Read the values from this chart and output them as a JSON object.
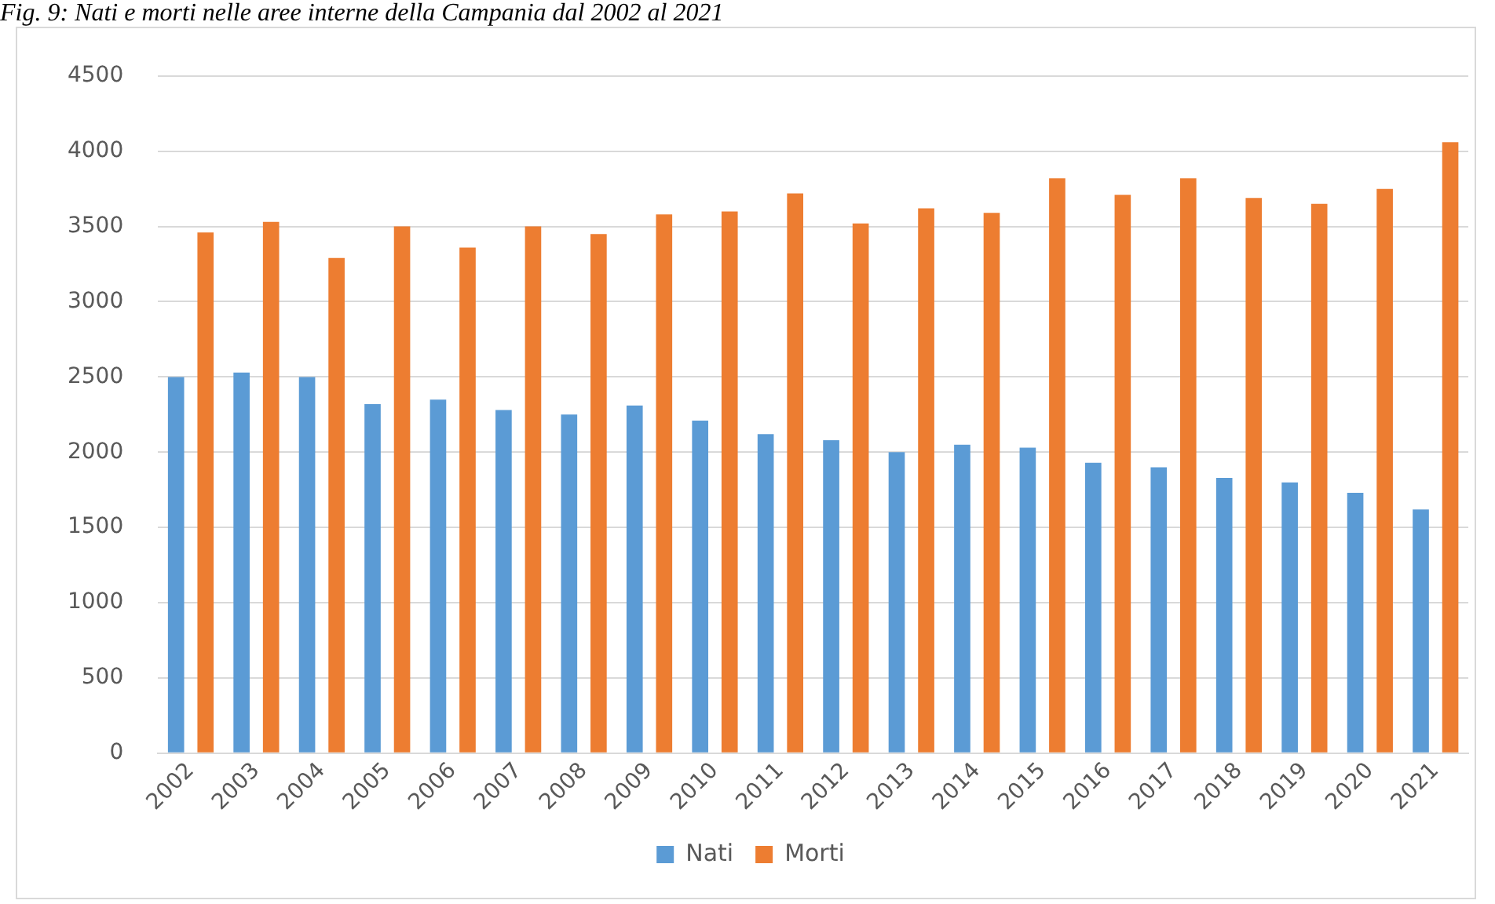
{
  "chart_data": {
    "type": "bar",
    "title": "Fig. 9: Nati e morti nelle aree interne della Campania dal 2002 al 2021",
    "categories": [
      "2002",
      "2003",
      "2004",
      "2005",
      "2006",
      "2007",
      "2008",
      "2009",
      "2010",
      "2011",
      "2012",
      "2013",
      "2014",
      "2015",
      "2016",
      "2017",
      "2018",
      "2019",
      "2020",
      "2021"
    ],
    "series": [
      {
        "name": "Nati",
        "color": "#5b9bd5",
        "values": [
          2500,
          2530,
          2500,
          2320,
          2350,
          2280,
          2250,
          2310,
          2210,
          2120,
          2080,
          2000,
          2050,
          2030,
          1930,
          1900,
          1830,
          1800,
          1730,
          1620
        ]
      },
      {
        "name": "Morti",
        "color": "#ed7d31",
        "values": [
          3460,
          3530,
          3290,
          3500,
          3360,
          3500,
          3450,
          3580,
          3600,
          3720,
          3520,
          3620,
          3590,
          3820,
          3710,
          3820,
          3690,
          3650,
          3750,
          4060
        ]
      }
    ],
    "ylim": [
      0,
      4500
    ],
    "yticks": [
      0,
      500,
      1000,
      1500,
      2000,
      2500,
      3000,
      3500,
      4000,
      4500
    ],
    "grid": "y",
    "legend": "bottom"
  }
}
